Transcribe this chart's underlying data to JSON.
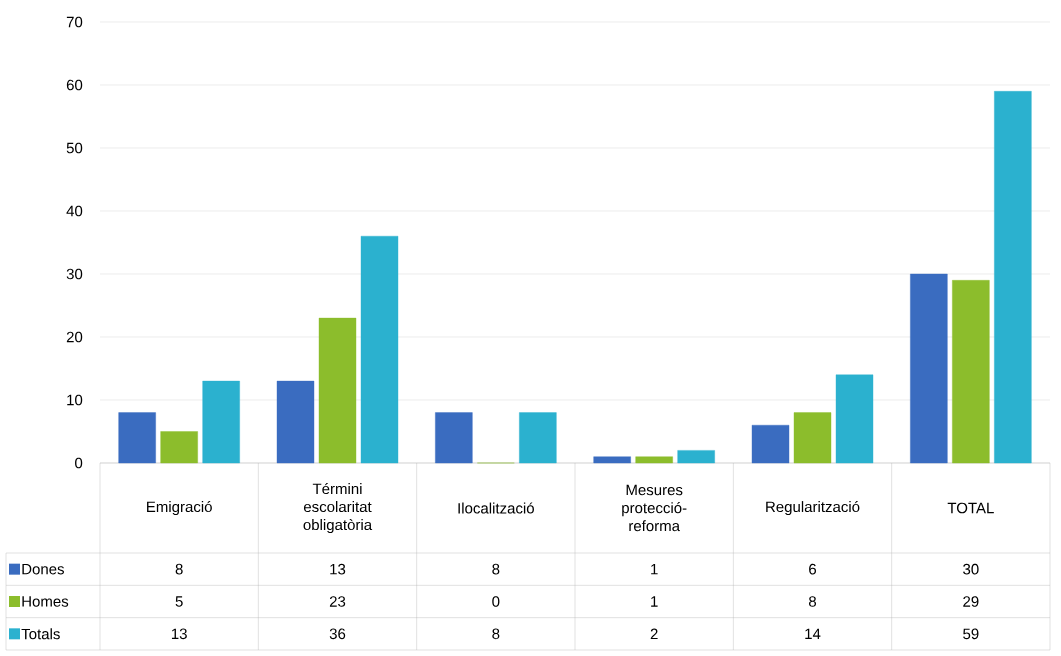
{
  "chart_data": {
    "type": "bar",
    "categories": [
      "Emigració",
      "Términi escolaritat obligatòria",
      "Ilocalització",
      "Mesures protecció-reforma",
      "Regularització",
      "TOTAL"
    ],
    "series": [
      {
        "name": "Dones",
        "color": "#3a6cc0",
        "values": [
          8,
          13,
          8,
          1,
          6,
          30
        ]
      },
      {
        "name": "Homes",
        "color": "#8cbd2c",
        "values": [
          5,
          23,
          0,
          1,
          8,
          29
        ]
      },
      {
        "name": "Totals",
        "color": "#2bb1cf",
        "values": [
          13,
          36,
          8,
          2,
          14,
          59
        ]
      }
    ],
    "ylim": [
      0,
      70
    ],
    "yticks": [
      0,
      10,
      20,
      30,
      40,
      50,
      60,
      70
    ],
    "grid": "y",
    "legend": "bottom",
    "data_labels": true
  }
}
